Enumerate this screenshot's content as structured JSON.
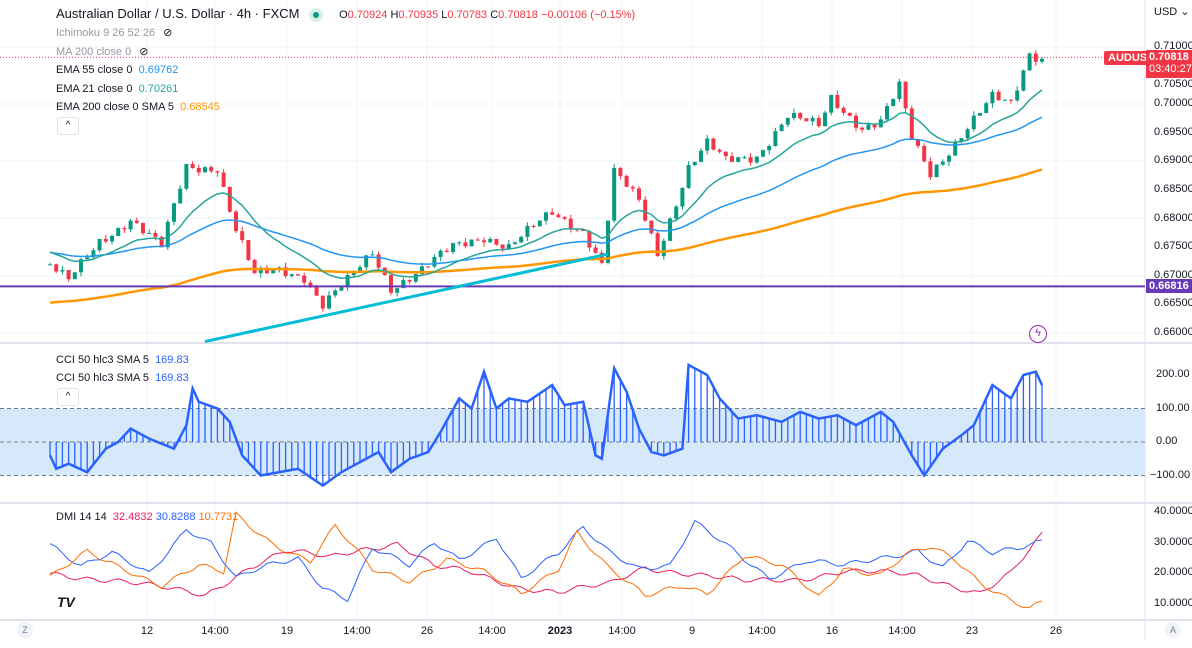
{
  "header": {
    "title": "Australian Dollar / U.S. Dollar · 4h · FXCM",
    "o_label": "O",
    "o": "0.70924",
    "h_label": "H",
    "h": "0.70935",
    "l_label": "L",
    "l": "0.70783",
    "c_label": "C",
    "c": "0.70818",
    "change": "−0.00106 (−0.15%)"
  },
  "indicators": [
    {
      "label": "Ichimoku 9 26 52 26",
      "hidden": true
    },
    {
      "label": "MA 200 close 0",
      "hidden": true
    },
    {
      "label": "EMA 55 close 0",
      "value": "0.69762",
      "color": "#2196f3"
    },
    {
      "label": "EMA 21 close 0",
      "value": "0.70261",
      "color": "#26a69a"
    },
    {
      "label": "EMA 200 close 0 SMA 5",
      "value": "0.68545",
      "color": "#ff9800"
    }
  ],
  "collapse_icon": "^",
  "price_axis": {
    "currency": "USD ⌄",
    "ticks": [
      "0.71000",
      "0.70500",
      "0.70000",
      "0.69500",
      "0.69000",
      "0.68500",
      "0.68000",
      "0.67500",
      "0.67000",
      "0.66500",
      "0.66000"
    ],
    "symbol_tag": "AUDUSD",
    "last_price": "0.70818",
    "countdown": "03:40:27",
    "hline_price": "0.66816"
  },
  "cci": {
    "legend": [
      {
        "label": "CCI 50 hlc3 SMA 5",
        "value": "169.83"
      },
      {
        "label": "CCI 50 hlc3 SMA 5",
        "value": "169.83"
      }
    ],
    "ticks": [
      "200.00",
      "100.00",
      "0.00",
      "−100.00"
    ]
  },
  "dmi": {
    "label": "DMI 14 14",
    "values": [
      "32.4832",
      "30.8288",
      "10.7731"
    ],
    "colors": [
      "#e91e63",
      "#2962ff",
      "#ff6d00"
    ],
    "ticks": [
      "40.0000",
      "30.0000",
      "20.0000",
      "10.0000"
    ]
  },
  "time_axis": {
    "labels": [
      "12",
      "14:00",
      "19",
      "14:00",
      "26",
      "14:00",
      "2023",
      "14:00",
      "9",
      "14:00",
      "16",
      "14:00",
      "23",
      "26"
    ],
    "left_button": "Z",
    "right_button": "A"
  },
  "colors": {
    "up": "#089981",
    "down": "#f23645",
    "ema21": "#26a69a",
    "ema55": "#2196f3",
    "ema200": "#ff9800",
    "hline": "#673ab7",
    "trend": "#00bcd4",
    "cci": "#2962ff"
  },
  "chart_data": {
    "type": "line",
    "price_keypoints": [
      [
        0,
        0.672
      ],
      [
        3,
        0.669
      ],
      [
        8,
        0.676
      ],
      [
        13,
        0.68
      ],
      [
        18,
        0.675
      ],
      [
        22,
        0.689
      ],
      [
        27,
        0.689
      ],
      [
        30,
        0.678
      ],
      [
        33,
        0.67
      ],
      [
        37,
        0.671
      ],
      [
        41,
        0.67
      ],
      [
        44,
        0.665
      ],
      [
        48,
        0.669
      ],
      [
        52,
        0.674
      ],
      [
        55,
        0.668
      ],
      [
        60,
        0.671
      ],
      [
        65,
        0.675
      ],
      [
        70,
        0.677
      ],
      [
        74,
        0.675
      ],
      [
        81,
        0.681
      ],
      [
        86,
        0.678
      ],
      [
        89,
        0.672
      ],
      [
        91,
        0.688
      ],
      [
        95,
        0.683
      ],
      [
        98,
        0.674
      ],
      [
        103,
        0.689
      ],
      [
        106,
        0.693
      ],
      [
        109,
        0.69
      ],
      [
        114,
        0.691
      ],
      [
        119,
        0.698
      ],
      [
        124,
        0.696
      ],
      [
        126,
        0.701
      ],
      [
        131,
        0.696
      ],
      [
        134,
        0.697
      ],
      [
        137,
        0.703
      ],
      [
        139,
        0.694
      ],
      [
        142,
        0.688
      ],
      [
        145,
        0.692
      ],
      [
        148,
        0.696
      ],
      [
        152,
        0.701
      ],
      [
        155,
        0.7
      ],
      [
        158,
        0.709
      ],
      [
        160,
        0.7082
      ]
    ],
    "cci_keypoints": [
      [
        0,
        -40
      ],
      [
        1,
        -80
      ],
      [
        3,
        -65
      ],
      [
        6,
        -90
      ],
      [
        9,
        -20
      ],
      [
        11,
        0
      ],
      [
        13,
        40
      ],
      [
        16,
        10
      ],
      [
        20,
        -20
      ],
      [
        22,
        50
      ],
      [
        23,
        160
      ],
      [
        24,
        120
      ],
      [
        27,
        100
      ],
      [
        29,
        60
      ],
      [
        31,
        -40
      ],
      [
        34,
        -100
      ],
      [
        40,
        -80
      ],
      [
        44,
        -130
      ],
      [
        47,
        -90
      ],
      [
        50,
        -60
      ],
      [
        53,
        -30
      ],
      [
        55,
        -90
      ],
      [
        58,
        -50
      ],
      [
        61,
        -30
      ],
      [
        63,
        30
      ],
      [
        66,
        130
      ],
      [
        68,
        100
      ],
      [
        70,
        210
      ],
      [
        72,
        100
      ],
      [
        74,
        130
      ],
      [
        77,
        120
      ],
      [
        81,
        170
      ],
      [
        83,
        110
      ],
      [
        86,
        120
      ],
      [
        88,
        -40
      ],
      [
        89,
        -50
      ],
      [
        91,
        220
      ],
      [
        93,
        150
      ],
      [
        95,
        40
      ],
      [
        97,
        -30
      ],
      [
        99,
        -40
      ],
      [
        102,
        -20
      ],
      [
        103,
        230
      ],
      [
        106,
        200
      ],
      [
        108,
        130
      ],
      [
        111,
        70
      ],
      [
        114,
        80
      ],
      [
        118,
        60
      ],
      [
        121,
        90
      ],
      [
        124,
        70
      ],
      [
        127,
        80
      ],
      [
        130,
        50
      ],
      [
        134,
        90
      ],
      [
        136,
        60
      ],
      [
        139,
        -40
      ],
      [
        141,
        -100
      ],
      [
        144,
        -20
      ],
      [
        147,
        20
      ],
      [
        149,
        50
      ],
      [
        152,
        170
      ],
      [
        155,
        130
      ],
      [
        157,
        200
      ],
      [
        159,
        210
      ],
      [
        160,
        170
      ]
    ],
    "dmi_red_keypoints": [
      [
        0,
        20
      ],
      [
        10,
        18
      ],
      [
        18,
        15
      ],
      [
        25,
        13
      ],
      [
        32,
        22
      ],
      [
        38,
        27
      ],
      [
        45,
        25
      ],
      [
        50,
        28
      ],
      [
        56,
        30
      ],
      [
        62,
        22
      ],
      [
        68,
        20
      ],
      [
        75,
        16
      ],
      [
        82,
        14
      ],
      [
        90,
        16
      ],
      [
        96,
        22
      ],
      [
        104,
        20
      ],
      [
        112,
        17
      ],
      [
        120,
        18
      ],
      [
        128,
        21
      ],
      [
        134,
        20
      ],
      [
        140,
        19
      ],
      [
        146,
        16
      ],
      [
        150,
        14
      ],
      [
        155,
        20
      ],
      [
        160,
        32
      ]
    ],
    "dmi_blue_keypoints": [
      [
        0,
        30
      ],
      [
        5,
        22
      ],
      [
        10,
        26
      ],
      [
        16,
        20
      ],
      [
        22,
        35
      ],
      [
        26,
        30
      ],
      [
        30,
        18
      ],
      [
        35,
        22
      ],
      [
        40,
        25
      ],
      [
        44,
        16
      ],
      [
        48,
        12
      ],
      [
        52,
        28
      ],
      [
        58,
        22
      ],
      [
        62,
        30
      ],
      [
        66,
        25
      ],
      [
        72,
        32
      ],
      [
        76,
        18
      ],
      [
        82,
        26
      ],
      [
        86,
        35
      ],
      [
        90,
        28
      ],
      [
        95,
        22
      ],
      [
        100,
        22
      ],
      [
        104,
        36
      ],
      [
        110,
        28
      ],
      [
        116,
        19
      ],
      [
        122,
        24
      ],
      [
        128,
        22
      ],
      [
        134,
        25
      ],
      [
        140,
        28
      ],
      [
        144,
        22
      ],
      [
        148,
        30
      ],
      [
        152,
        26
      ],
      [
        156,
        28
      ],
      [
        160,
        31
      ]
    ],
    "dmi_orange_keypoints": [
      [
        0,
        18
      ],
      [
        6,
        27
      ],
      [
        12,
        22
      ],
      [
        18,
        16
      ],
      [
        24,
        22
      ],
      [
        28,
        20
      ],
      [
        30,
        39
      ],
      [
        36,
        30
      ],
      [
        42,
        24
      ],
      [
        46,
        35
      ],
      [
        52,
        21
      ],
      [
        58,
        18
      ],
      [
        64,
        25
      ],
      [
        70,
        20
      ],
      [
        76,
        13
      ],
      [
        82,
        22
      ],
      [
        85,
        34
      ],
      [
        90,
        22
      ],
      [
        96,
        12
      ],
      [
        102,
        16
      ],
      [
        106,
        14
      ],
      [
        112,
        26
      ],
      [
        118,
        22
      ],
      [
        124,
        12
      ],
      [
        128,
        22
      ],
      [
        134,
        20
      ],
      [
        138,
        26
      ],
      [
        142,
        28
      ],
      [
        146,
        24
      ],
      [
        150,
        17
      ],
      [
        155,
        12
      ],
      [
        158,
        9
      ],
      [
        160,
        11
      ]
    ],
    "ema21_start": 0.6745,
    "ema55_start": 0.6742,
    "ema200_start": 0.6652,
    "hline": 0.66816,
    "trendline": [
      [
        25,
        0.6585
      ],
      [
        90,
        0.6738
      ]
    ]
  }
}
